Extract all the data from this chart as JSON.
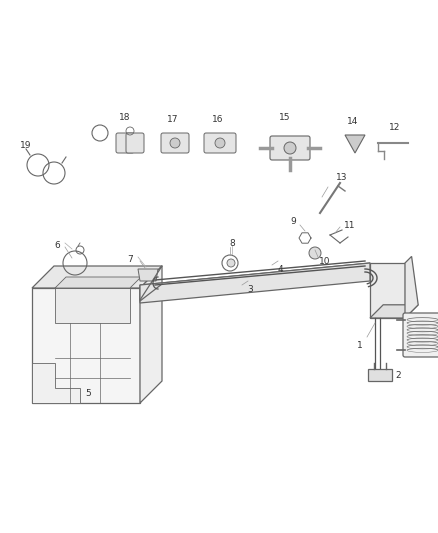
{
  "bg_color": "#ffffff",
  "line_color": "#666666",
  "fig_width": 4.38,
  "fig_height": 5.33,
  "dpi": 100,
  "label_color": "#333333",
  "label_fs": 6.5
}
